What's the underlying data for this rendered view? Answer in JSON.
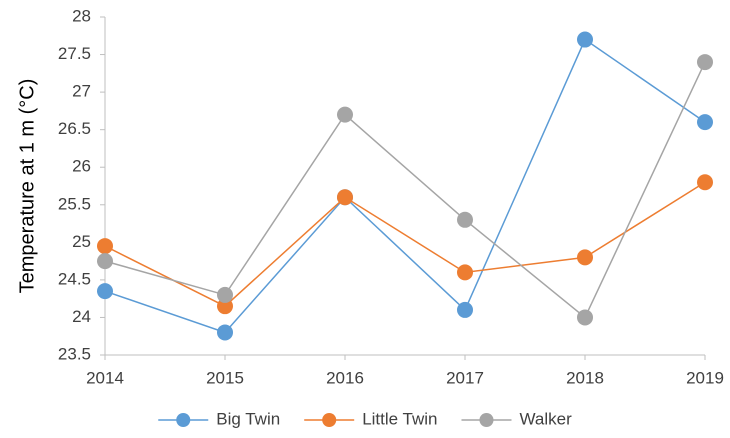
{
  "chart_data": {
    "type": "line",
    "x": [
      2014,
      2015,
      2016,
      2017,
      2018,
      2019
    ],
    "series": [
      {
        "name": "Big Twin",
        "color": "#5b9bd5",
        "values": [
          24.35,
          23.8,
          25.6,
          24.1,
          27.7,
          26.6
        ]
      },
      {
        "name": "Little Twin",
        "color": "#ed7d31",
        "values": [
          24.95,
          24.15,
          25.6,
          24.6,
          24.8,
          25.8
        ]
      },
      {
        "name": "Walker",
        "color": "#a5a5a5",
        "values": [
          24.75,
          24.3,
          26.7,
          25.3,
          24.0,
          27.4
        ]
      }
    ],
    "ylabel": "Temperature at 1 m (°C)",
    "xlim": [
      2014,
      2019
    ],
    "xticks": [
      2014,
      2015,
      2016,
      2017,
      2018,
      2019
    ],
    "ylim": [
      23.5,
      28
    ],
    "yticks": [
      23.5,
      24,
      24.5,
      25,
      25.5,
      26,
      26.5,
      27,
      27.5,
      28
    ],
    "grid": false,
    "legend": "bottom"
  }
}
